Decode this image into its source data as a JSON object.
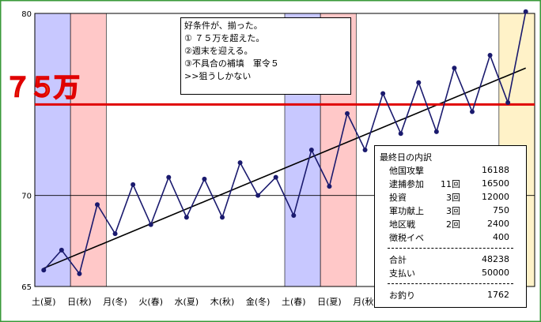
{
  "colors": {
    "frame": "#3A9A3A",
    "series": "#1A1A6E",
    "trend": "#000000",
    "target_line": "#E00000",
    "band_blue": "#C8C8FF",
    "band_pink": "#FFC8C8",
    "band_yellow": "#FFF2C8",
    "marker_fill": "#FFA500",
    "marker_stroke": "#E00000"
  },
  "target_marker": {
    "label": "７５万"
  },
  "annotation": {
    "lines": [
      "好条件が、揃った。",
      "① ７５万を超えた。",
      "②週末を迎える。",
      "③不具合の補填　軍令５",
      ">>狙うしかない"
    ]
  },
  "breakdown": {
    "title": "最終日の内訳",
    "items": [
      {
        "label": "他国攻撃",
        "count": "",
        "value": "16188"
      },
      {
        "label": "逮捕参加",
        "count": "11回",
        "value": "16500"
      },
      {
        "label": "投資",
        "count": "3回",
        "value": "12000"
      },
      {
        "label": "軍功献上",
        "count": "3回",
        "value": "750"
      },
      {
        "label": "地区戦",
        "count": "2回",
        "value": "2400"
      },
      {
        "label": "徴税イベ",
        "count": "",
        "value": "400"
      }
    ],
    "total_label": "合計",
    "total_value": "48238",
    "payment_label": "支払い",
    "payment_value": "50000",
    "change_label": "お釣り",
    "change_value": "1762"
  },
  "chart_data": {
    "type": "line",
    "ylim": [
      65,
      80
    ],
    "yticks": [
      65,
      70,
      80
    ],
    "target_value": 75,
    "x_tick_labels": [
      "土(夏)",
      "日(秋)",
      "月(冬)",
      "火(春)",
      "水(夏)",
      "木(秋)",
      "金(冬)",
      "土(春)",
      "日(夏)",
      "月(秋)"
    ],
    "x_tick_positions": [
      0,
      2,
      4,
      6,
      8,
      10,
      12,
      14,
      16,
      18
    ],
    "x_range": [
      -0.5,
      27.5
    ],
    "series": [
      {
        "values": [
          65.9,
          67.0,
          65.7,
          69.5,
          67.9,
          70.6,
          68.4,
          71.0,
          68.8,
          70.9,
          68.8,
          71.8,
          70.0,
          71.0,
          68.9,
          72.5,
          70.5,
          74.5,
          72.5,
          75.6,
          73.4,
          76.2,
          73.5,
          77.0,
          74.6,
          77.7,
          75.1,
          80.1
        ]
      }
    ],
    "trend": {
      "start": 66.0,
      "end": 77.0
    },
    "bands": [
      {
        "from": -0.5,
        "to": 1.5,
        "color": "blue"
      },
      {
        "from": 1.5,
        "to": 3.5,
        "color": "pink"
      },
      {
        "from": 13.5,
        "to": 15.5,
        "color": "blue"
      },
      {
        "from": 15.5,
        "to": 17.5,
        "color": "pink"
      },
      {
        "from": 25.5,
        "to": 27.5,
        "color": "yellow"
      }
    ]
  }
}
